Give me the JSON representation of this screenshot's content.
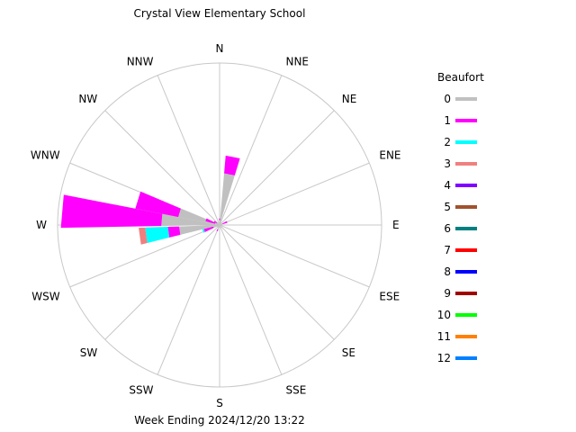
{
  "chart_data": {
    "type": "wind-rose",
    "title": "Crystal View Elementary School",
    "footer": "Week Ending 2024/12/20 13:22",
    "directions": [
      "N",
      "NNE",
      "NE",
      "ENE",
      "E",
      "ESE",
      "SE",
      "SSE",
      "S",
      "SSW",
      "SW",
      "WSW",
      "W",
      "WNW",
      "NW",
      "NNW"
    ],
    "legend_title": "Beaufort",
    "legend": [
      {
        "label": "0",
        "color": "#c0c0c0"
      },
      {
        "label": "1",
        "color": "#ff00ff"
      },
      {
        "label": "2",
        "color": "#00ffff"
      },
      {
        "label": "3",
        "color": "#f08080"
      },
      {
        "label": "4",
        "color": "#8000ff"
      },
      {
        "label": "5",
        "color": "#a0522d"
      },
      {
        "label": "6",
        "color": "#008080"
      },
      {
        "label": "7",
        "color": "#ff0000"
      },
      {
        "label": "8",
        "color": "#0000ff"
      },
      {
        "label": "9",
        "color": "#a00000"
      },
      {
        "label": "10",
        "color": "#00ff00"
      },
      {
        "label": "11",
        "color": "#ff8000"
      },
      {
        "label": "12",
        "color": "#0080ff"
      }
    ],
    "rmax": 100,
    "bars": [
      {
        "dir": "N",
        "deg": 0,
        "segments": [
          3,
          1
        ]
      },
      {
        "dir": "NNE",
        "deg": 11,
        "segments": [
          32,
          11
        ]
      },
      {
        "dir": "ENE",
        "deg": 67.5,
        "segments": [
          2,
          3
        ]
      },
      {
        "dir": "E",
        "deg": 90,
        "segments": [
          2
        ]
      },
      {
        "dir": "ESE",
        "deg": 112.5,
        "segments": [
          1
        ]
      },
      {
        "dir": "SSW",
        "deg": 202.5,
        "segments": [
          3,
          1
        ]
      },
      {
        "dir": "SW",
        "deg": 225,
        "segments": [
          2
        ]
      },
      {
        "dir": "WSW",
        "deg": 250,
        "segments": [
          4,
          6,
          1
        ]
      },
      {
        "dir": "WSW",
        "deg": 262,
        "segments": [
          25,
          7,
          14,
          4
        ]
      },
      {
        "dir": "W",
        "deg": 270,
        "segments": [
          6
        ]
      },
      {
        "dir": "W",
        "deg": 275,
        "segments": [
          36,
          62
        ]
      },
      {
        "dir": "WNW",
        "deg": 287,
        "segments": [
          26,
          27
        ]
      },
      {
        "dir": "NW",
        "deg": 304,
        "segments": [
          2,
          2
        ]
      },
      {
        "dir": "WNW",
        "deg": 291,
        "segments": [
          3,
          6
        ]
      }
    ]
  }
}
